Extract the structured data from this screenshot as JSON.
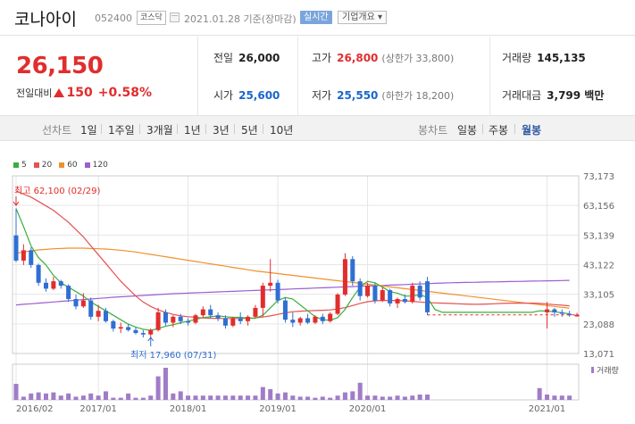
{
  "header": {
    "company_name": "코나아이",
    "stock_code": "052400",
    "market": "코스닥",
    "date_text": "2021.01.28 기준(장마감)",
    "realtime_label": "실시간",
    "overview_label": "기업개요 ▾"
  },
  "price": {
    "current": "26,150",
    "change_label": "전일대비",
    "change": "150",
    "change_pct": "+0.58%",
    "colors": {
      "up": "#e12d2d",
      "down": "#1a66cc"
    }
  },
  "stats": {
    "prev_close": {
      "label": "전일",
      "value": "26,000"
    },
    "open": {
      "label": "시가",
      "value": "25,600"
    },
    "high": {
      "label": "고가",
      "value": "26,800",
      "sub": "(상한가 33,800)"
    },
    "low": {
      "label": "저가",
      "value": "25,550",
      "sub": "(하한가 18,200)"
    },
    "volume": {
      "label": "거래량",
      "value": "145,135"
    },
    "amount": {
      "label": "거래대금",
      "value": "3,799 백만"
    }
  },
  "toolbar": {
    "line_chart_label": "선차트",
    "periods": [
      "1일",
      "1주일",
      "3개월",
      "1년",
      "3년",
      "5년",
      "10년"
    ],
    "candle_chart_label": "봉차트",
    "candle_periods": [
      "일봉",
      "주봉",
      "월봉"
    ],
    "active_candle": "월봉"
  },
  "chart_data": {
    "type": "candlestick",
    "ma_legend": [
      {
        "name": "5",
        "color": "#3cae3c"
      },
      {
        "name": "20",
        "color": "#e65050"
      },
      {
        "name": "60",
        "color": "#f0902c"
      },
      {
        "name": "120",
        "color": "#9b5fd2"
      }
    ],
    "y_ticks": [
      "73,173",
      "63,156",
      "53,139",
      "43,122",
      "33,105",
      "23,088",
      "13,071"
    ],
    "ylim": [
      13071,
      73173
    ],
    "x_ticks": [
      "2016/02",
      "2017/01",
      "2018/01",
      "2019/01",
      "2020/01",
      "2021/01"
    ],
    "high_annotation": "최고 62,100 (02/29)",
    "low_annotation": "최저 17,960 (07/31)",
    "volume_label": "거래량",
    "colors": {
      "up": "#e12d2d",
      "down": "#2f6fd3",
      "grid": "#e6e6e6",
      "axis": "#999999"
    },
    "candles": [
      {
        "o": 53000,
        "h": 62100,
        "l": 44000,
        "c": 44500
      },
      {
        "o": 44500,
        "h": 50000,
        "l": 43000,
        "c": 48000
      },
      {
        "o": 48000,
        "h": 49000,
        "l": 42000,
        "c": 43000
      },
      {
        "o": 43000,
        "h": 43500,
        "l": 36000,
        "c": 37000
      },
      {
        "o": 37000,
        "h": 38500,
        "l": 34000,
        "c": 35000
      },
      {
        "o": 35000,
        "h": 39000,
        "l": 34500,
        "c": 37500
      },
      {
        "o": 37500,
        "h": 38000,
        "l": 35000,
        "c": 36000
      },
      {
        "o": 36000,
        "h": 36500,
        "l": 30500,
        "c": 31500
      },
      {
        "o": 31500,
        "h": 33000,
        "l": 28000,
        "c": 29000
      },
      {
        "o": 29000,
        "h": 33500,
        "l": 28500,
        "c": 31000
      },
      {
        "o": 31000,
        "h": 32000,
        "l": 24500,
        "c": 25500
      },
      {
        "o": 25500,
        "h": 29500,
        "l": 24000,
        "c": 27500
      },
      {
        "o": 27500,
        "h": 28500,
        "l": 23500,
        "c": 24000
      },
      {
        "o": 24000,
        "h": 24500,
        "l": 20500,
        "c": 21500
      },
      {
        "o": 21500,
        "h": 23500,
        "l": 20000,
        "c": 22000
      },
      {
        "o": 22000,
        "h": 23000,
        "l": 20500,
        "c": 21000
      },
      {
        "o": 21000,
        "h": 22000,
        "l": 19500,
        "c": 20000
      },
      {
        "o": 20000,
        "h": 21000,
        "l": 18500,
        "c": 19500
      },
      {
        "o": 19500,
        "h": 21500,
        "l": 17960,
        "c": 21000
      },
      {
        "o": 21000,
        "h": 28500,
        "l": 20500,
        "c": 27000
      },
      {
        "o": 27000,
        "h": 28000,
        "l": 22500,
        "c": 23500
      },
      {
        "o": 23500,
        "h": 26000,
        "l": 22000,
        "c": 25500
      },
      {
        "o": 25500,
        "h": 26500,
        "l": 23000,
        "c": 24000
      },
      {
        "o": 24000,
        "h": 25000,
        "l": 22500,
        "c": 23500
      },
      {
        "o": 23500,
        "h": 26500,
        "l": 23000,
        "c": 26000
      },
      {
        "o": 26000,
        "h": 29000,
        "l": 25000,
        "c": 28000
      },
      {
        "o": 28000,
        "h": 29500,
        "l": 25000,
        "c": 26000
      },
      {
        "o": 26000,
        "h": 27000,
        "l": 24000,
        "c": 25000
      },
      {
        "o": 25000,
        "h": 26000,
        "l": 21500,
        "c": 22500
      },
      {
        "o": 22500,
        "h": 25500,
        "l": 22000,
        "c": 25000
      },
      {
        "o": 25000,
        "h": 27000,
        "l": 23000,
        "c": 24000
      },
      {
        "o": 24000,
        "h": 26000,
        "l": 22500,
        "c": 25500
      },
      {
        "o": 25500,
        "h": 29500,
        "l": 25000,
        "c": 28500
      },
      {
        "o": 28500,
        "h": 37000,
        "l": 25500,
        "c": 36000
      },
      {
        "o": 36000,
        "h": 45000,
        "l": 34000,
        "c": 37000
      },
      {
        "o": 37000,
        "h": 38000,
        "l": 30000,
        "c": 31000
      },
      {
        "o": 31000,
        "h": 32000,
        "l": 23500,
        "c": 24500
      },
      {
        "o": 24500,
        "h": 27000,
        "l": 22000,
        "c": 23500
      },
      {
        "o": 23500,
        "h": 25500,
        "l": 22500,
        "c": 25000
      },
      {
        "o": 25000,
        "h": 26500,
        "l": 23000,
        "c": 23500
      },
      {
        "o": 23500,
        "h": 26000,
        "l": 23000,
        "c": 25500
      },
      {
        "o": 25500,
        "h": 26500,
        "l": 23000,
        "c": 24000
      },
      {
        "o": 24000,
        "h": 27000,
        "l": 23500,
        "c": 26500
      },
      {
        "o": 26500,
        "h": 33500,
        "l": 26000,
        "c": 33000
      },
      {
        "o": 33000,
        "h": 47000,
        "l": 32500,
        "c": 45000
      },
      {
        "o": 45000,
        "h": 46000,
        "l": 36000,
        "c": 37500
      },
      {
        "o": 37500,
        "h": 38500,
        "l": 31000,
        "c": 32500
      },
      {
        "o": 32500,
        "h": 37000,
        "l": 32000,
        "c": 36000
      },
      {
        "o": 36000,
        "h": 37000,
        "l": 30000,
        "c": 31000
      },
      {
        "o": 31000,
        "h": 35500,
        "l": 30500,
        "c": 34500
      },
      {
        "o": 34500,
        "h": 35000,
        "l": 29000,
        "c": 30000
      },
      {
        "o": 30000,
        "h": 32000,
        "l": 28500,
        "c": 31500
      },
      {
        "o": 31500,
        "h": 33000,
        "l": 30000,
        "c": 30500
      },
      {
        "o": 30500,
        "h": 37000,
        "l": 30000,
        "c": 36000
      },
      {
        "o": 36000,
        "h": 37500,
        "l": 31000,
        "c": 32000
      },
      {
        "o": 37500,
        "h": 39000,
        "l": 26000,
        "c": 27000
      },
      null,
      null,
      null,
      null,
      null,
      null,
      null,
      null,
      null,
      null,
      null,
      null,
      null,
      null,
      null,
      {
        "o": 27000,
        "h": 30500,
        "l": 21500,
        "c": 28000
      },
      {
        "o": 28000,
        "h": 28500,
        "l": 25500,
        "c": 27000
      },
      {
        "o": 27000,
        "h": 28000,
        "l": 25500,
        "c": 26500
      },
      {
        "o": 26500,
        "h": 27500,
        "l": 25500,
        "c": 26000
      },
      {
        "o": 25600,
        "h": 26800,
        "l": 25550,
        "c": 26150
      }
    ],
    "ma5": [
      62100,
      56000,
      49500,
      45500,
      43000,
      39500,
      37000,
      35500,
      34000,
      32500,
      30500,
      29000,
      27500,
      26000,
      24500,
      23000,
      22000,
      21300,
      20900,
      21500,
      22300,
      22800,
      23500,
      24000,
      24600,
      25200,
      25500,
      25800,
      25500,
      25300,
      25300,
      25000,
      25000,
      26000,
      28500,
      31000,
      32000,
      31500,
      29500,
      27500,
      25500,
      24500,
      24300,
      25200,
      28000,
      32000,
      35500,
      37500,
      37000,
      35500,
      34000,
      33500,
      32500,
      32500,
      33000,
      32000,
      28000,
      27000,
      27000,
      27000,
      27000,
      27000,
      27000,
      27000,
      27000,
      27000,
      27000,
      27000,
      27000,
      27000,
      27500,
      27400,
      27200,
      26800,
      26500
    ],
    "ma20": [
      68000,
      67000,
      66000,
      64500,
      63000,
      61500,
      59500,
      57500,
      55000,
      52500,
      49500,
      46500,
      43500,
      40500,
      37500,
      35000,
      32500,
      30500,
      29000,
      27800,
      27000,
      26300,
      25800,
      25500,
      25300,
      25100,
      25000,
      24900,
      24900,
      24900,
      24900,
      25000,
      25100,
      25400,
      25800,
      26300,
      26800,
      27200,
      27400,
      27500,
      27600,
      27700,
      27800,
      28100,
      28600,
      29300,
      30000,
      30600,
      30900,
      31000,
      31000,
      31000,
      30900,
      30700,
      30500,
      30300,
      30200,
      30100,
      30000,
      29900,
      29800,
      29700,
      29700,
      29800,
      29900,
      30000,
      30100,
      30100,
      30100,
      30100,
      30000,
      29800,
      29600,
      29400,
      29200
    ],
    "ma60": [
      47000,
      47400,
      47800,
      48100,
      48300,
      48500,
      48600,
      48700,
      48700,
      48700,
      48600,
      48500,
      48400,
      48200,
      48000,
      47700,
      47400,
      47000,
      46600,
      46200,
      45800,
      45400,
      45000,
      44600,
      44200,
      43800,
      43400,
      43000,
      42600,
      42200,
      41800,
      41400,
      41000,
      40700,
      40400,
      40100,
      39800,
      39500,
      39200,
      38900,
      38600,
      38300,
      38000,
      37700,
      37400,
      37100,
      36800,
      36500,
      36200,
      35900,
      35600,
      35300,
      35000,
      34700,
      34400,
      34100,
      33800,
      33500,
      33200,
      32900,
      32600,
      32300,
      32000,
      31700,
      31400,
      31100,
      30800,
      30500,
      30200,
      29900,
      29600,
      29300,
      29000,
      28700,
      28400
    ],
    "ma120": [
      29500,
      29700,
      29900,
      30100,
      30300,
      30500,
      30700,
      30900,
      31100,
      31300,
      31500,
      31700,
      31900,
      32100,
      32250,
      32400,
      32550,
      32700,
      32850,
      33000,
      33150,
      33300,
      33400,
      33500,
      33600,
      33700,
      33800,
      33900,
      34000,
      34100,
      34200,
      34300,
      34400,
      34500,
      34600,
      34700,
      34800,
      34900,
      35000,
      35100,
      35200,
      35300,
      35400,
      35500,
      35600,
      35700,
      35800,
      35900,
      36000,
      36100,
      36200,
      36300,
      36400,
      36500,
      36600,
      36700,
      36800,
      36900,
      37000,
      37050,
      37100,
      37150,
      37200,
      37250,
      37300,
      37350,
      37400,
      37450,
      37500,
      37550,
      37600,
      37650,
      37700,
      37750,
      37800
    ],
    "volume": [
      30,
      6,
      12,
      14,
      12,
      14,
      8,
      12,
      6,
      8,
      12,
      8,
      16,
      4,
      4,
      12,
      4,
      4,
      8,
      44,
      60,
      12,
      16,
      8,
      8,
      8,
      8,
      8,
      8,
      8,
      8,
      8,
      8,
      24,
      20,
      12,
      14,
      8,
      6,
      6,
      4,
      6,
      4,
      8,
      14,
      16,
      32,
      8,
      8,
      6,
      6,
      8,
      6,
      8,
      10,
      10,
      0,
      0,
      0,
      0,
      0,
      0,
      0,
      0,
      0,
      0,
      0,
      0,
      0,
      0,
      22,
      10,
      8,
      8,
      8
    ]
  }
}
